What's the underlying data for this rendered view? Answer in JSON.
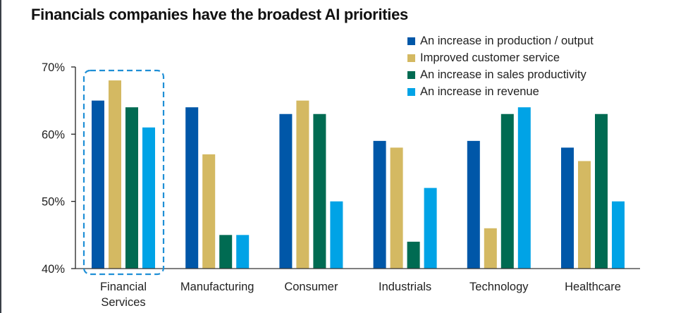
{
  "chart_data": {
    "type": "bar",
    "title": "Financials companies have the broadest AI priorities",
    "xlabel": "",
    "ylabel": "",
    "ylim": [
      40,
      70
    ],
    "yticks": [
      "40%",
      "50%",
      "60%",
      "70%"
    ],
    "ytick_values": [
      40,
      50,
      60,
      70
    ],
    "grid": false,
    "legend_position": "top-right",
    "categories": [
      [
        "Financial",
        "Services"
      ],
      [
        "Manufacturing"
      ],
      [
        "Consumer"
      ],
      [
        "Industrials"
      ],
      [
        "Technology"
      ],
      [
        "Healthcare"
      ]
    ],
    "series": [
      {
        "name": "An increase in production / output",
        "color": "#0057a8",
        "values": [
          65,
          64,
          63,
          59,
          59,
          58
        ]
      },
      {
        "name": "Improved customer service",
        "color": "#d4b962",
        "values": [
          68,
          57,
          65,
          58,
          46,
          56
        ]
      },
      {
        "name": "An increase in sales productivity",
        "color": "#006b52",
        "values": [
          64,
          45,
          63,
          44,
          63,
          63
        ]
      },
      {
        "name": "An increase in revenue",
        "color": "#00a3e6",
        "values": [
          61,
          45,
          50,
          52,
          64,
          50
        ]
      }
    ],
    "annotations": [
      {
        "type": "dashed-box",
        "target_category": "Financial Services",
        "color": "#1f8fd6"
      }
    ]
  }
}
